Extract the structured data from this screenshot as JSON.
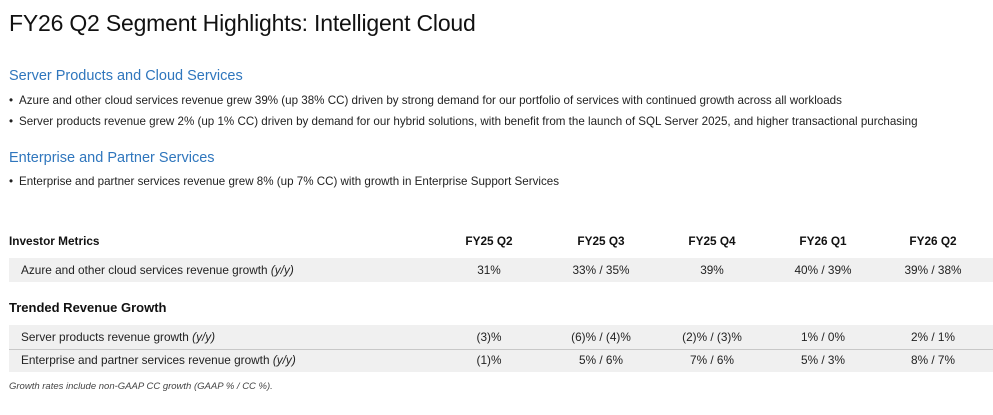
{
  "title": "FY26 Q2 Segment Highlights: Intelligent Cloud",
  "sections": [
    {
      "heading": "Server Products and Cloud Services",
      "bullets": [
        "Azure and other cloud services revenue grew 39% (up 38% CC) driven by strong demand for our portfolio of services with continued growth across all workloads",
        "Server products revenue grew 2% (up 1% CC) driven by demand for our hybrid solutions, with benefit from the launch of SQL Server 2025, and higher transactional purchasing"
      ]
    },
    {
      "heading": "Enterprise and Partner Services",
      "bullets": [
        "Enterprise and partner services revenue grew 8% (up 7% CC) with growth in Enterprise Support Services"
      ]
    }
  ],
  "table": {
    "label_header": "Investor Metrics",
    "columns": [
      "FY25 Q2",
      "FY25 Q3",
      "FY25 Q4",
      "FY26 Q1",
      "FY26 Q2"
    ],
    "investor_rows": [
      {
        "label": "Azure and other cloud services revenue growth",
        "suffix": "(y/y)",
        "values": [
          "31%",
          "33% / 35%",
          "39%",
          "40% / 39%",
          "39% / 38%"
        ]
      }
    ],
    "group_title": "Trended Revenue Growth",
    "trended_rows": [
      {
        "label": "Server products revenue growth",
        "suffix": "(y/y)",
        "values": [
          "(3)%",
          "(6)% / (4)%",
          "(2)% / (3)%",
          "1% / 0%",
          "2% / 1%"
        ]
      },
      {
        "label": "Enterprise and partner services revenue growth",
        "suffix": "(y/y)",
        "values": [
          "(1)%",
          "5% / 6%",
          "7% / 6%",
          "5% / 3%",
          "8% / 7%"
        ]
      }
    ]
  },
  "footnote": "Growth rates include non-GAAP CC growth (GAAP % / CC %)."
}
